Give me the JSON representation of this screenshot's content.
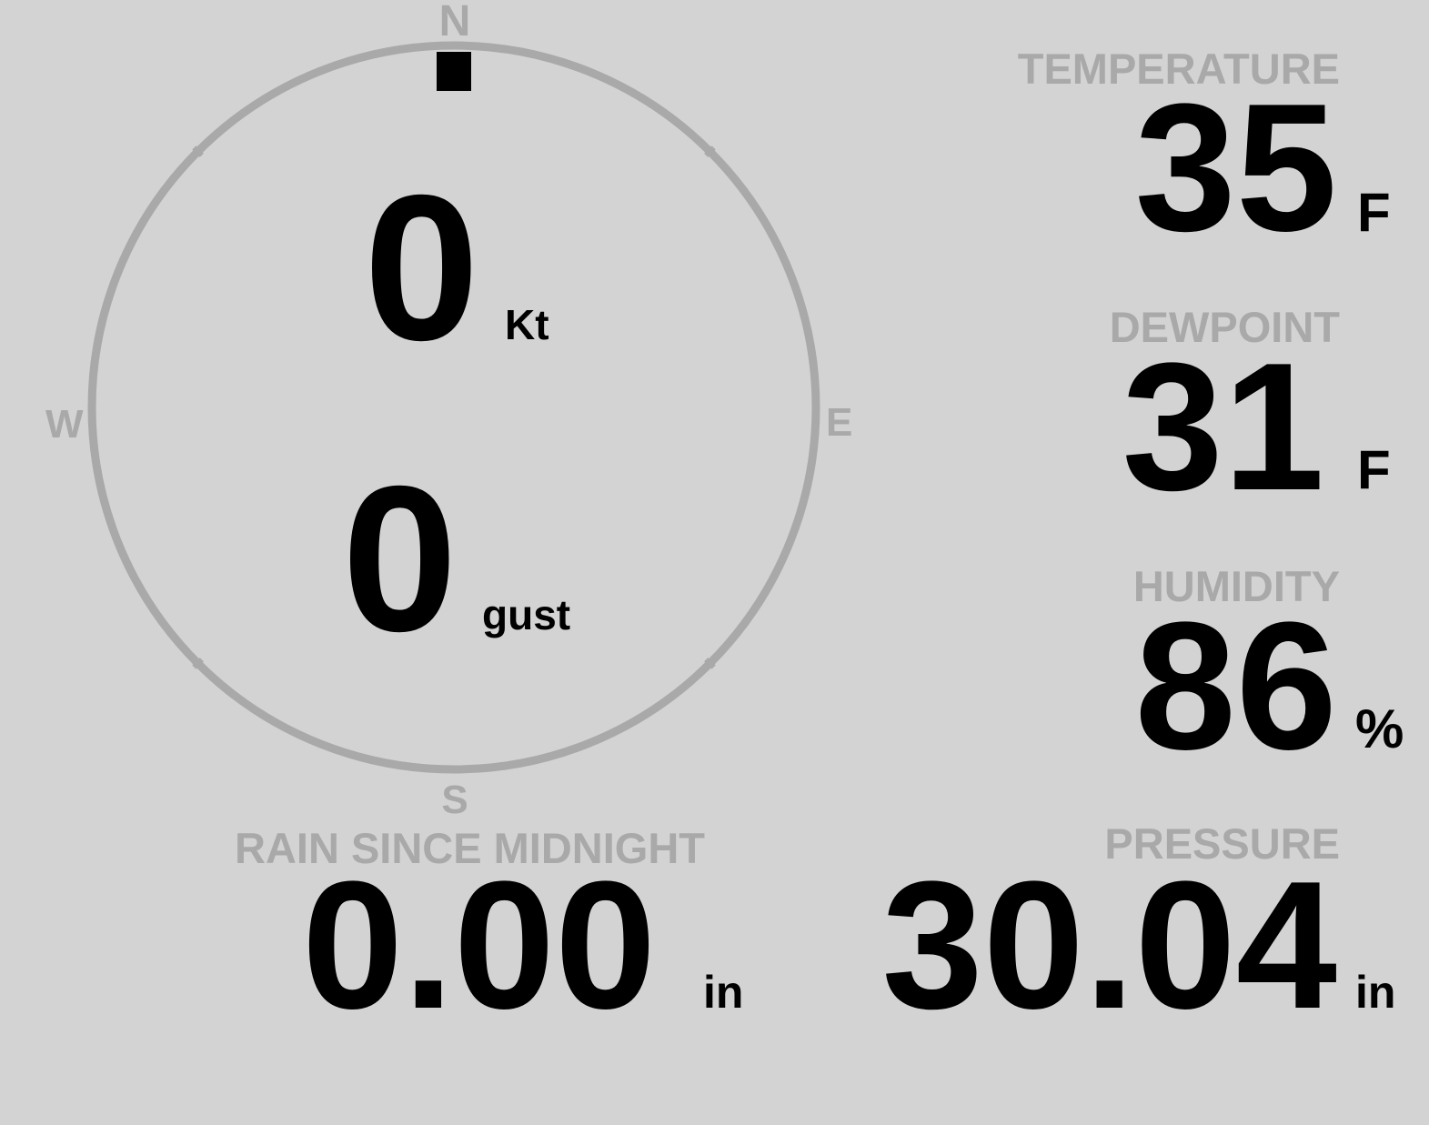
{
  "colors": {
    "background": "#d3d3d3",
    "label": "#a9a9a9",
    "value": "#000000"
  },
  "wind": {
    "compass": {
      "n": "N",
      "e": "E",
      "s": "S",
      "w": "W"
    },
    "direction_deg": 0,
    "speed": "0",
    "speed_unit": "Kt",
    "gust": "0",
    "gust_unit": "gust"
  },
  "temperature": {
    "label": "TEMPERATURE",
    "value": "35",
    "unit": "F"
  },
  "dewpoint": {
    "label": "DEWPOINT",
    "value": "31",
    "unit": "F"
  },
  "humidity": {
    "label": "HUMIDITY",
    "value": "86",
    "unit": "%"
  },
  "rain": {
    "label": "RAIN SINCE MIDNIGHT",
    "value": "0.00",
    "unit": "in"
  },
  "pressure": {
    "label": "PRESSURE",
    "value": "30.04",
    "unit": "in"
  }
}
